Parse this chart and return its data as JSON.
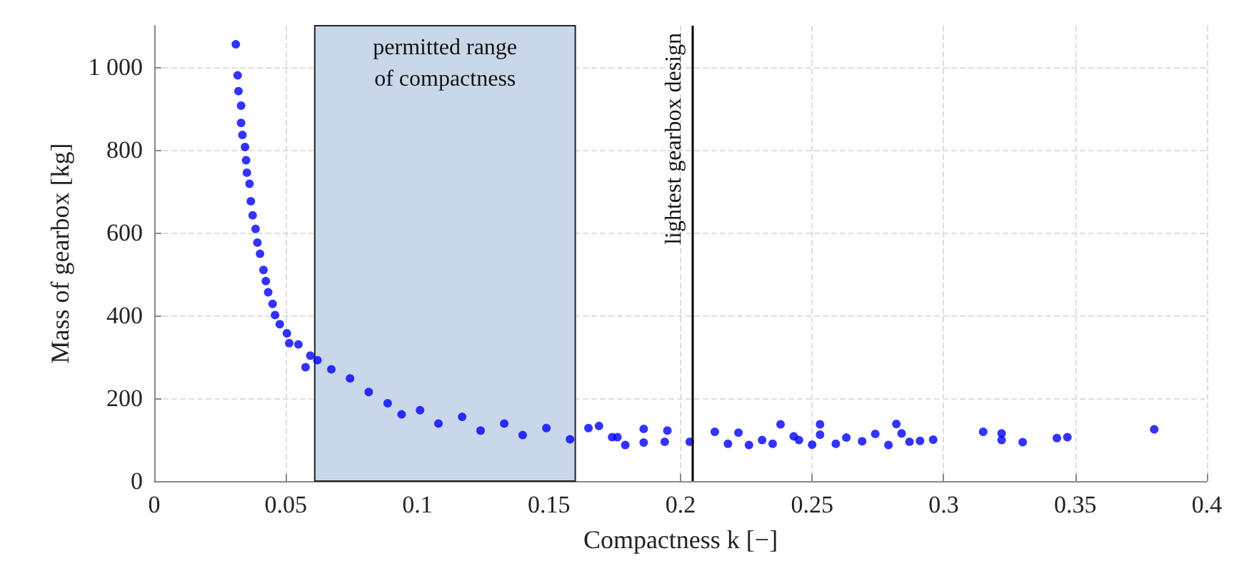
{
  "chart_data": {
    "type": "scatter",
    "xlabel": "Compactness k [−]",
    "ylabel": "Mass of gearbox [kg]",
    "xlim": [
      0,
      0.4
    ],
    "xticks": [
      0,
      0.05,
      0.1,
      0.15,
      0.2,
      0.25,
      0.3,
      0.35,
      0.4
    ],
    "ylim": [
      0,
      1100
    ],
    "yticks": [
      0,
      200,
      400,
      600,
      800,
      {
        "value": 1000,
        "label": "1 000"
      }
    ],
    "grid": true,
    "marker": "circle",
    "series": [
      {
        "color": "#0000ff",
        "x": [
          0.031,
          0.0317,
          0.032,
          0.033,
          0.033,
          0.0335,
          0.0345,
          0.0349,
          0.0352,
          0.0362,
          0.0367,
          0.0374,
          0.0385,
          0.0392,
          0.0402,
          0.0415,
          0.0424,
          0.0433,
          0.045,
          0.0459,
          0.0477,
          0.0504,
          0.0513,
          0.0548,
          0.0575,
          0.0593,
          0.062,
          0.0673,
          0.0744,
          0.0815,
          0.0887,
          0.094,
          0.101,
          0.108,
          0.117,
          0.124,
          0.133,
          0.14,
          0.149,
          0.158,
          0.165,
          0.176,
          0.169,
          0.174,
          0.179,
          0.186,
          0.186,
          0.195,
          0.194,
          0.2035,
          0.213,
          0.218,
          0.222,
          0.226,
          0.231,
          0.235,
          0.238,
          0.243,
          0.245,
          0.25,
          0.253,
          0.253,
          0.259,
          0.263,
          0.269,
          0.274,
          0.279,
          0.282,
          0.284,
          0.287,
          0.291,
          0.296,
          0.315,
          0.322,
          0.322,
          0.33,
          0.343,
          0.347,
          0.38
        ],
        "values": [
          1055,
          980,
          942,
          907,
          865,
          836,
          807,
          775,
          745,
          718,
          676,
          642,
          609,
          576,
          549,
          510,
          483,
          456,
          428,
          401,
          379,
          357,
          333,
          330,
          275,
          303,
          292,
          270,
          248,
          215,
          188,
          161,
          171,
          139,
          155,
          122,
          139,
          111,
          128,
          101,
          128,
          106,
          133,
          106,
          87,
          126,
          93,
          122,
          95,
          95,
          119,
          90,
          117,
          87,
          99,
          90,
          137,
          108,
          99,
          88,
          137,
          112,
          90,
          105,
          96,
          114,
          87,
          138,
          115,
          95,
          97,
          100,
          119,
          115,
          99,
          94,
          104,
          106,
          125
        ]
      }
    ],
    "bands": [
      {
        "axis": "x",
        "from": 0.061,
        "to": 0.16,
        "label": "permitted range\nof compactness",
        "color": "#c8d7ea"
      }
    ],
    "ref_lines": [
      {
        "axis": "x",
        "value": 0.2045,
        "label": "lightest gearbox design",
        "color": "#000000"
      }
    ]
  }
}
